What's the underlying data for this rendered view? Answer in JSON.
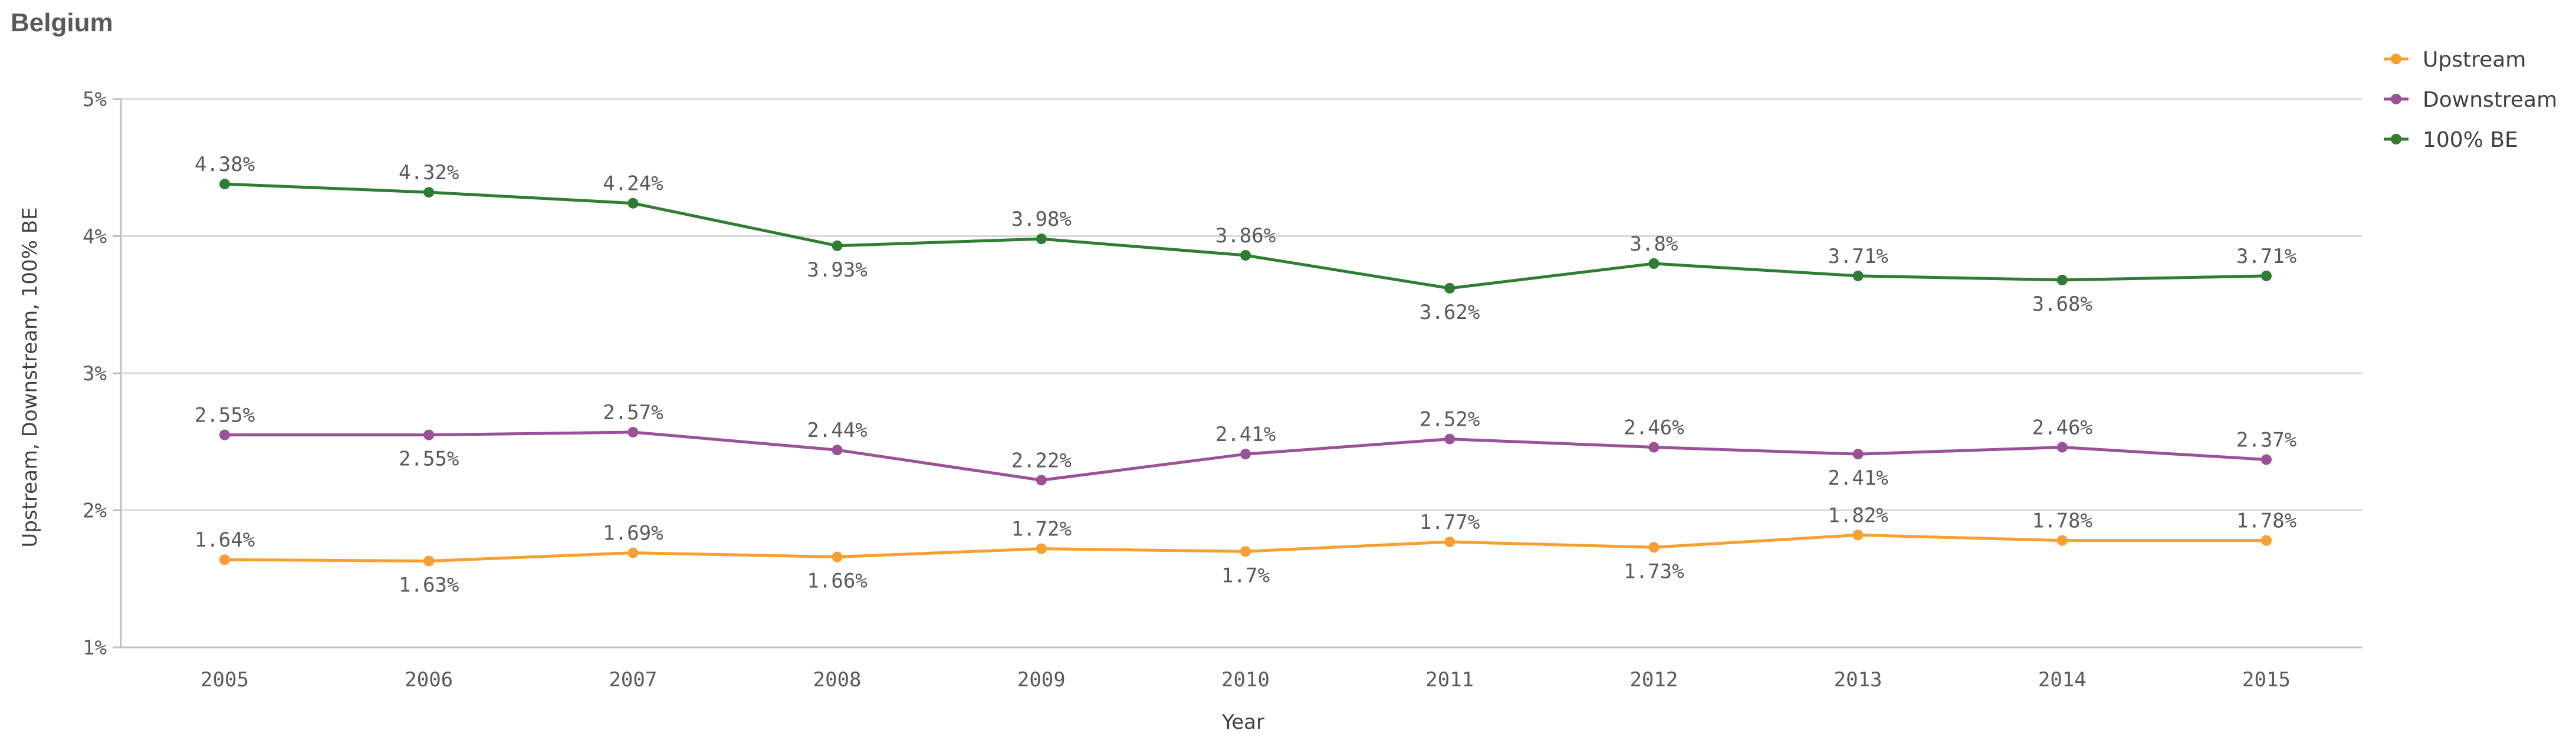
{
  "chart_data": {
    "type": "line",
    "title": "Belgium",
    "xlabel": "Year",
    "ylabel": "Upstream, Downstream, 100% BE",
    "ylim": [
      1,
      5
    ],
    "y_ticks": [
      "1%",
      "2%",
      "3%",
      "4%",
      "5%"
    ],
    "grid": true,
    "legend_position": "top-right",
    "x": [
      "2005",
      "2006",
      "2007",
      "2008",
      "2009",
      "2010",
      "2011",
      "2012",
      "2013",
      "2014",
      "2015"
    ],
    "series": [
      {
        "name": "Upstream",
        "color": "#f7a030",
        "values": [
          1.64,
          1.63,
          1.69,
          1.66,
          1.72,
          1.7,
          1.77,
          1.73,
          1.82,
          1.78,
          1.78
        ],
        "labels": [
          "1.64%",
          "1.63%",
          "1.69%",
          "1.66%",
          "1.72%",
          "1.7%",
          "1.77%",
          "1.73%",
          "1.82%",
          "1.78%",
          "1.78%"
        ],
        "label_positions": [
          "above",
          "below",
          "above",
          "below",
          "above",
          "below",
          "above",
          "below",
          "above",
          "above",
          "above"
        ]
      },
      {
        "name": "Downstream",
        "color": "#9b5197",
        "values": [
          2.55,
          2.55,
          2.57,
          2.44,
          2.22,
          2.41,
          2.52,
          2.46,
          2.41,
          2.46,
          2.37
        ],
        "labels": [
          "2.55%",
          "2.55%",
          "2.57%",
          "2.44%",
          "2.22%",
          "2.41%",
          "2.52%",
          "2.46%",
          "2.41%",
          "2.46%",
          "2.37%"
        ],
        "label_positions": [
          "above",
          "below",
          "above",
          "above",
          "above",
          "above",
          "above",
          "above",
          "below",
          "above",
          "above"
        ]
      },
      {
        "name": "100% BE",
        "color": "#2e7d32",
        "values": [
          4.38,
          4.32,
          4.24,
          3.93,
          3.98,
          3.86,
          3.62,
          3.8,
          3.71,
          3.68,
          3.71
        ],
        "labels": [
          "4.38%",
          "4.32%",
          "4.24%",
          "3.93%",
          "3.98%",
          "3.86%",
          "3.62%",
          "3.8%",
          "3.71%",
          "3.68%",
          "3.71%"
        ],
        "label_positions": [
          "above",
          "above",
          "above",
          "below",
          "above",
          "above",
          "below",
          "above",
          "above",
          "below",
          "above"
        ]
      }
    ]
  }
}
